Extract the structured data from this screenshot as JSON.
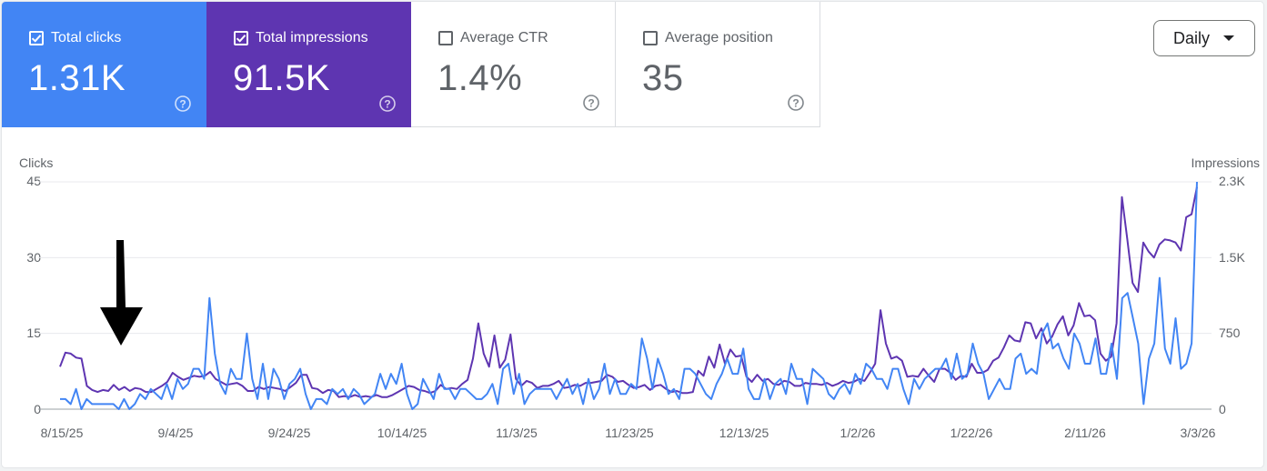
{
  "cards": [
    {
      "label": "Total clicks",
      "value": "1.31K",
      "checked": true
    },
    {
      "label": "Total impressions",
      "value": "91.5K",
      "checked": true
    },
    {
      "label": "Average CTR",
      "value": "1.4%",
      "checked": false
    },
    {
      "label": "Average position",
      "value": "35",
      "checked": false
    }
  ],
  "period_select": {
    "value": "Daily"
  },
  "colors": {
    "clicks": "#4285f4",
    "impressions": "#5e35b1"
  },
  "chart_data": {
    "type": "line",
    "ylabel_left": "Clicks",
    "ylabel_right": "Impressions",
    "y_left_ticks": [
      "45",
      "30",
      "15",
      "0"
    ],
    "y_right_ticks": [
      "2.3K",
      "1.5K",
      "750",
      "0"
    ],
    "ylim_left": [
      0,
      45
    ],
    "ylim_right": [
      0,
      2250
    ],
    "x_ticks": [
      "8/15/25",
      "9/4/25",
      "9/24/25",
      "10/14/25",
      "11/3/25",
      "11/23/25",
      "12/13/25",
      "1/2/26",
      "1/22/26",
      "2/11/26",
      "3/3/26"
    ],
    "x_range": [
      "2025-08-15",
      "2026-03-03"
    ],
    "grid": true,
    "series": [
      {
        "name": "Clicks",
        "axis": "left",
        "values": [
          2,
          2,
          1,
          4,
          0,
          2,
          1,
          1,
          1,
          1,
          1,
          0,
          2,
          0,
          1,
          3,
          2,
          4,
          3,
          2,
          5,
          2,
          6,
          4,
          5,
          8,
          8,
          6,
          22,
          11,
          5,
          3,
          8,
          6,
          6,
          15,
          6,
          2,
          9,
          2,
          8,
          6,
          2,
          5,
          6,
          8,
          3,
          0,
          2,
          2,
          1,
          4,
          3,
          4,
          2,
          4,
          3,
          1,
          2,
          3,
          7,
          4,
          7,
          5,
          9,
          3,
          0,
          1,
          6,
          4,
          2,
          7,
          4,
          4,
          2,
          4,
          4,
          3,
          2,
          2,
          3,
          5,
          1,
          8,
          9,
          3,
          7,
          1,
          3,
          4,
          4,
          4,
          4,
          2,
          4,
          6,
          3,
          5,
          1,
          6,
          2,
          4,
          9,
          3,
          6,
          3,
          3,
          5,
          4,
          14,
          10,
          4,
          10,
          7,
          3,
          4,
          2,
          8,
          8,
          7,
          5,
          3,
          2,
          5,
          7,
          10,
          7,
          7,
          12,
          4,
          2,
          2,
          6,
          2,
          5,
          6,
          3,
          9,
          6,
          6,
          1,
          8,
          7,
          6,
          3,
          2,
          4,
          5,
          3,
          7,
          5,
          9,
          8,
          6,
          6,
          4,
          8,
          8,
          4,
          1,
          6,
          4,
          6,
          7,
          8,
          8,
          10,
          6,
          11,
          6,
          7,
          13,
          9,
          7,
          2,
          4,
          6,
          4,
          4,
          10,
          11,
          7,
          8,
          7,
          15,
          17,
          12,
          13,
          10,
          8,
          15,
          13,
          9,
          9,
          14,
          7,
          7,
          13,
          6,
          22,
          23,
          18,
          13,
          1,
          10,
          13,
          26,
          12,
          9,
          18,
          8,
          9,
          13,
          45
        ]
      },
      {
        "name": "Impressions",
        "axis": "right",
        "values": [
          420,
          560,
          550,
          510,
          500,
          230,
          190,
          170,
          190,
          180,
          240,
          190,
          220,
          180,
          210,
          200,
          170,
          170,
          200,
          230,
          270,
          360,
          320,
          290,
          310,
          330,
          320,
          330,
          370,
          300,
          270,
          240,
          250,
          260,
          230,
          180,
          180,
          220,
          200,
          220,
          210,
          200,
          180,
          220,
          260,
          340,
          340,
          210,
          200,
          160,
          190,
          180,
          120,
          130,
          120,
          140,
          120,
          130,
          120,
          140,
          120,
          120,
          140,
          170,
          200,
          230,
          220,
          190,
          180,
          160,
          180,
          240,
          200,
          210,
          200,
          250,
          290,
          500,
          850,
          550,
          420,
          730,
          410,
          490,
          740,
          300,
          230,
          280,
          260,
          210,
          230,
          230,
          250,
          280,
          210,
          220,
          240,
          230,
          260,
          260,
          270,
          280,
          340,
          320,
          270,
          280,
          240,
          210,
          220,
          240,
          190,
          230,
          240,
          200,
          170,
          180,
          160,
          160,
          170,
          380,
          330,
          520,
          410,
          640,
          450,
          590,
          520,
          530,
          320,
          270,
          340,
          280,
          300,
          250,
          240,
          280,
          270,
          230,
          230,
          260,
          250,
          250,
          240,
          260,
          230,
          250,
          280,
          260,
          270,
          300,
          280,
          360,
          450,
          980,
          650,
          500,
          520,
          480,
          320,
          330,
          320,
          400,
          330,
          270,
          400,
          400,
          360,
          290,
          330,
          320,
          450,
          360,
          360,
          390,
          480,
          510,
          610,
          730,
          680,
          670,
          860,
          850,
          700,
          800,
          650,
          720,
          840,
          920,
          730,
          830,
          1050,
          920,
          930,
          880,
          550,
          480,
          520,
          850,
          2100,
          1690,
          1250,
          1160,
          1650,
          1560,
          1500,
          1630,
          1680,
          1670,
          1650,
          1570,
          1900,
          1930,
          2200
        ]
      }
    ]
  }
}
